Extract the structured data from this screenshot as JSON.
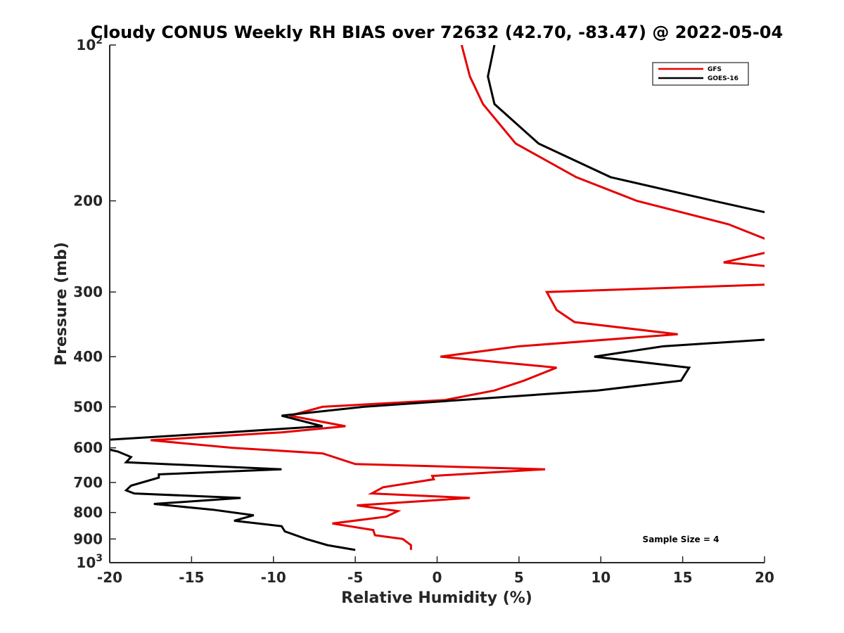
{
  "chart_data": {
    "type": "line",
    "title": "Cloudy CONUS Weekly RH BIAS over 72632 (42.70, -83.47) @ 2022-05-04",
    "xlabel": "Relative Humidity (%)",
    "ylabel": "Pressure (mb)",
    "xlim": [
      -20,
      20
    ],
    "ylim": [
      100,
      1000
    ],
    "y_scale": "log",
    "y_reversed": true,
    "x_ticks": [
      "-20",
      "-15",
      "-10",
      "-5",
      "0",
      "5",
      "10",
      "15",
      "20"
    ],
    "y_ticks": [
      {
        "value": 100,
        "base": "10",
        "exp": "2"
      },
      {
        "value": 200,
        "label": "200"
      },
      {
        "value": 300,
        "label": "300"
      },
      {
        "value": 400,
        "label": "400"
      },
      {
        "value": 500,
        "label": "500"
      },
      {
        "value": 600,
        "label": "600"
      },
      {
        "value": 700,
        "label": "700"
      },
      {
        "value": 800,
        "label": "800"
      },
      {
        "value": 900,
        "label": "900"
      },
      {
        "value": 1000,
        "base": "10",
        "exp": "3"
      }
    ],
    "grid": false,
    "legend_position": "top-right",
    "annotation": "Sample Size = 4",
    "series": [
      {
        "name": "GFS",
        "color": "#e60000",
        "points": [
          [
            1.5,
            100
          ],
          [
            2.0,
            115
          ],
          [
            2.8,
            130
          ],
          [
            4.8,
            155
          ],
          [
            8.5,
            180
          ],
          [
            12.2,
            200
          ],
          [
            17.8,
            222
          ],
          [
            20.5,
            240
          ],
          [
            20.5,
            250
          ],
          [
            17.5,
            263
          ],
          [
            20.5,
            268
          ],
          [
            20.5,
            290
          ],
          [
            6.7,
            300
          ],
          [
            7.3,
            325
          ],
          [
            8.4,
            343
          ],
          [
            14.7,
            362
          ],
          [
            5.0,
            382
          ],
          [
            0.2,
            400
          ],
          [
            7.3,
            420
          ],
          [
            5.3,
            445
          ],
          [
            3.5,
            465
          ],
          [
            0.5,
            485
          ],
          [
            -7.0,
            500
          ],
          [
            -9.0,
            520
          ],
          [
            -5.6,
            545
          ],
          [
            -9.5,
            560
          ],
          [
            -17.5,
            580
          ],
          [
            -12.5,
            600
          ],
          [
            -7.0,
            615
          ],
          [
            -5.0,
            645
          ],
          [
            6.6,
            660
          ],
          [
            -0.3,
            680
          ],
          [
            -0.2,
            690
          ],
          [
            -3.3,
            715
          ],
          [
            -4.0,
            735
          ],
          [
            2.0,
            750
          ],
          [
            -4.9,
            775
          ],
          [
            -2.4,
            795
          ],
          [
            -3.1,
            815
          ],
          [
            -6.4,
            840
          ],
          [
            -3.9,
            865
          ],
          [
            -3.8,
            885
          ],
          [
            -2.1,
            900
          ],
          [
            -1.6,
            925
          ],
          [
            -1.6,
            945
          ]
        ]
      },
      {
        "name": "GOES-16",
        "color": "#000000",
        "points": [
          [
            3.5,
            100
          ],
          [
            3.1,
            115
          ],
          [
            3.5,
            130
          ],
          [
            6.2,
            155
          ],
          [
            10.6,
            180
          ],
          [
            16.9,
            200
          ],
          [
            20.5,
            212
          ],
          [
            20.5,
            370
          ],
          [
            13.8,
            382
          ],
          [
            9.6,
            400
          ],
          [
            15.4,
            420
          ],
          [
            14.9,
            445
          ],
          [
            9.8,
            465
          ],
          [
            -4.5,
            500
          ],
          [
            -9.5,
            520
          ],
          [
            -7.0,
            545
          ],
          [
            -12.8,
            560
          ],
          [
            -20.5,
            580
          ],
          [
            -20.5,
            600
          ],
          [
            -19.5,
            610
          ],
          [
            -18.7,
            625
          ],
          [
            -19.0,
            640
          ],
          [
            -9.5,
            660
          ],
          [
            -17.0,
            675
          ],
          [
            -17.0,
            685
          ],
          [
            -18.7,
            710
          ],
          [
            -19.0,
            725
          ],
          [
            -18.5,
            735
          ],
          [
            -12.0,
            750
          ],
          [
            -17.3,
            770
          ],
          [
            -13.7,
            790
          ],
          [
            -11.2,
            810
          ],
          [
            -12.4,
            830
          ],
          [
            -9.5,
            850
          ],
          [
            -9.3,
            870
          ],
          [
            -8.0,
            900
          ],
          [
            -6.7,
            925
          ],
          [
            -5.0,
            945
          ]
        ]
      }
    ]
  }
}
